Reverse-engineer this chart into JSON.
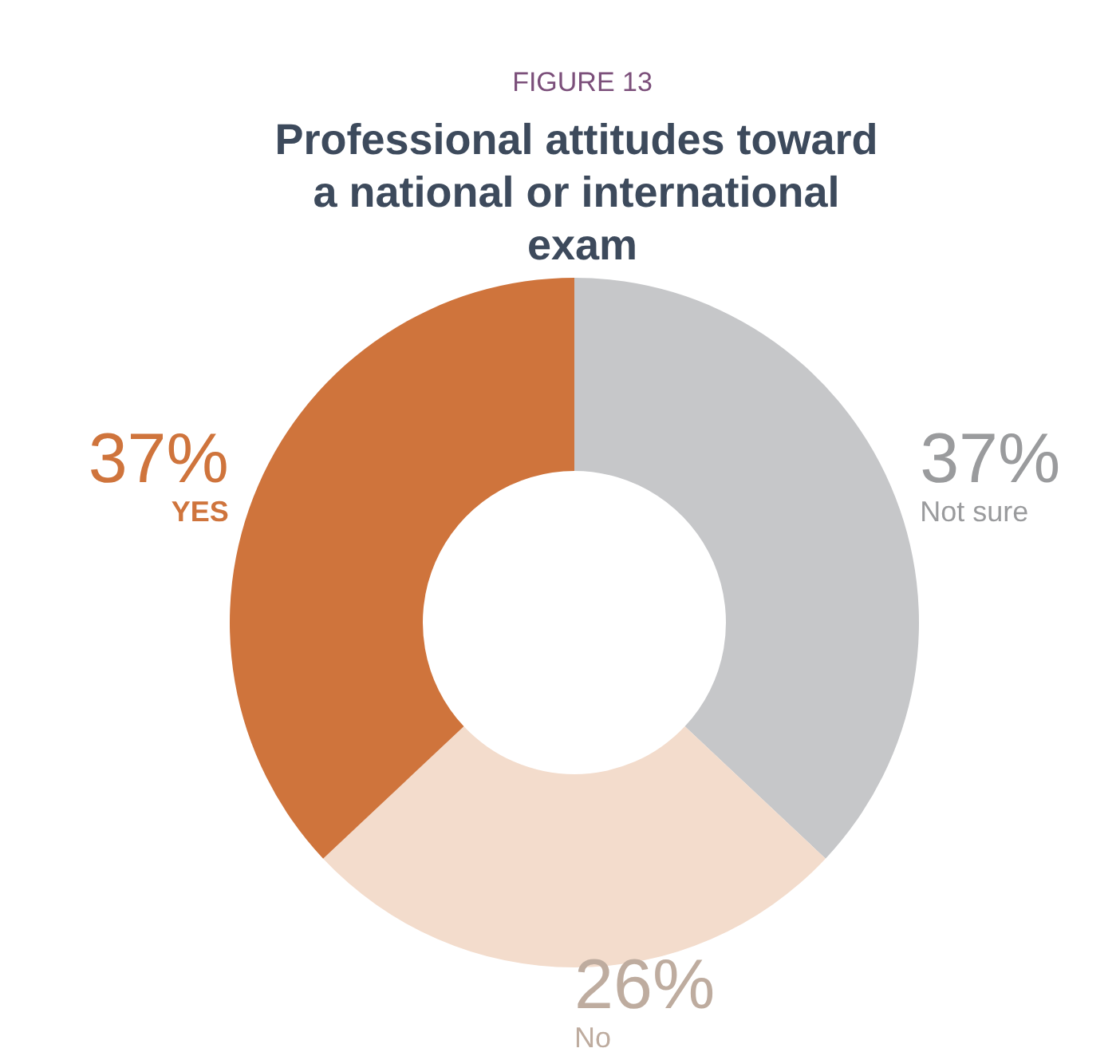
{
  "chart_data": {
    "type": "donut",
    "subtitle": "FIGURE 13",
    "title": "Professional attitudes toward a national or international exam",
    "categories": [
      "Not sure",
      "No",
      "YES"
    ],
    "values": [
      37,
      26,
      37
    ],
    "colors": [
      "#c6c7c9",
      "#f3dccc",
      "#cf743c"
    ],
    "value_labels": [
      "37%",
      "26%",
      "37%"
    ],
    "legend": false
  }
}
